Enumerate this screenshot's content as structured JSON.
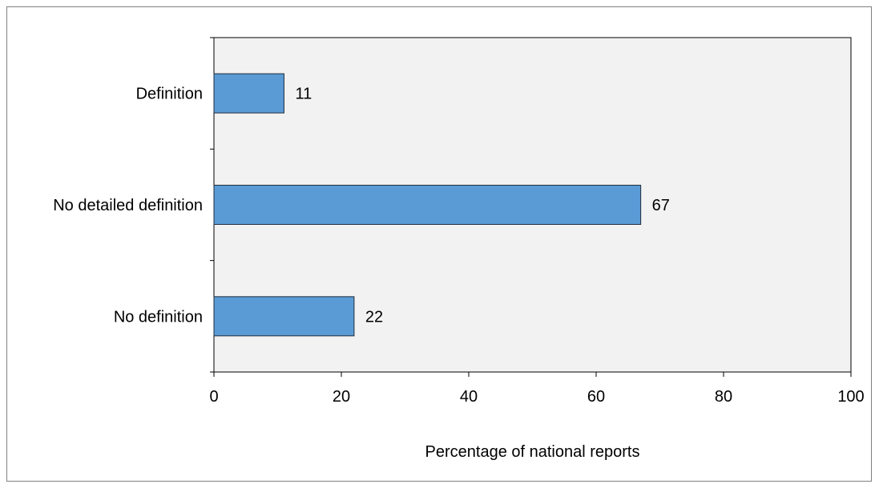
{
  "chart_data": {
    "type": "bar",
    "orientation": "horizontal",
    "categories": [
      "Definition",
      "No detailed definition",
      "No definition"
    ],
    "values": [
      11,
      67,
      22
    ],
    "data_labels": [
      "11",
      "67",
      "22"
    ],
    "title": "",
    "xlabel": "Percentage of national reports",
    "ylabel": "",
    "xlim": [
      0,
      100
    ],
    "xticks": [
      "0",
      "20",
      "40",
      "60",
      "80",
      "100"
    ],
    "grid": false,
    "legend": "none",
    "colors": {
      "bar_fill": "#5b9bd5",
      "bar_stroke": "#1f2d3d",
      "plot_bg": "#f2f2f2",
      "frame": "#7f7f7f"
    }
  }
}
